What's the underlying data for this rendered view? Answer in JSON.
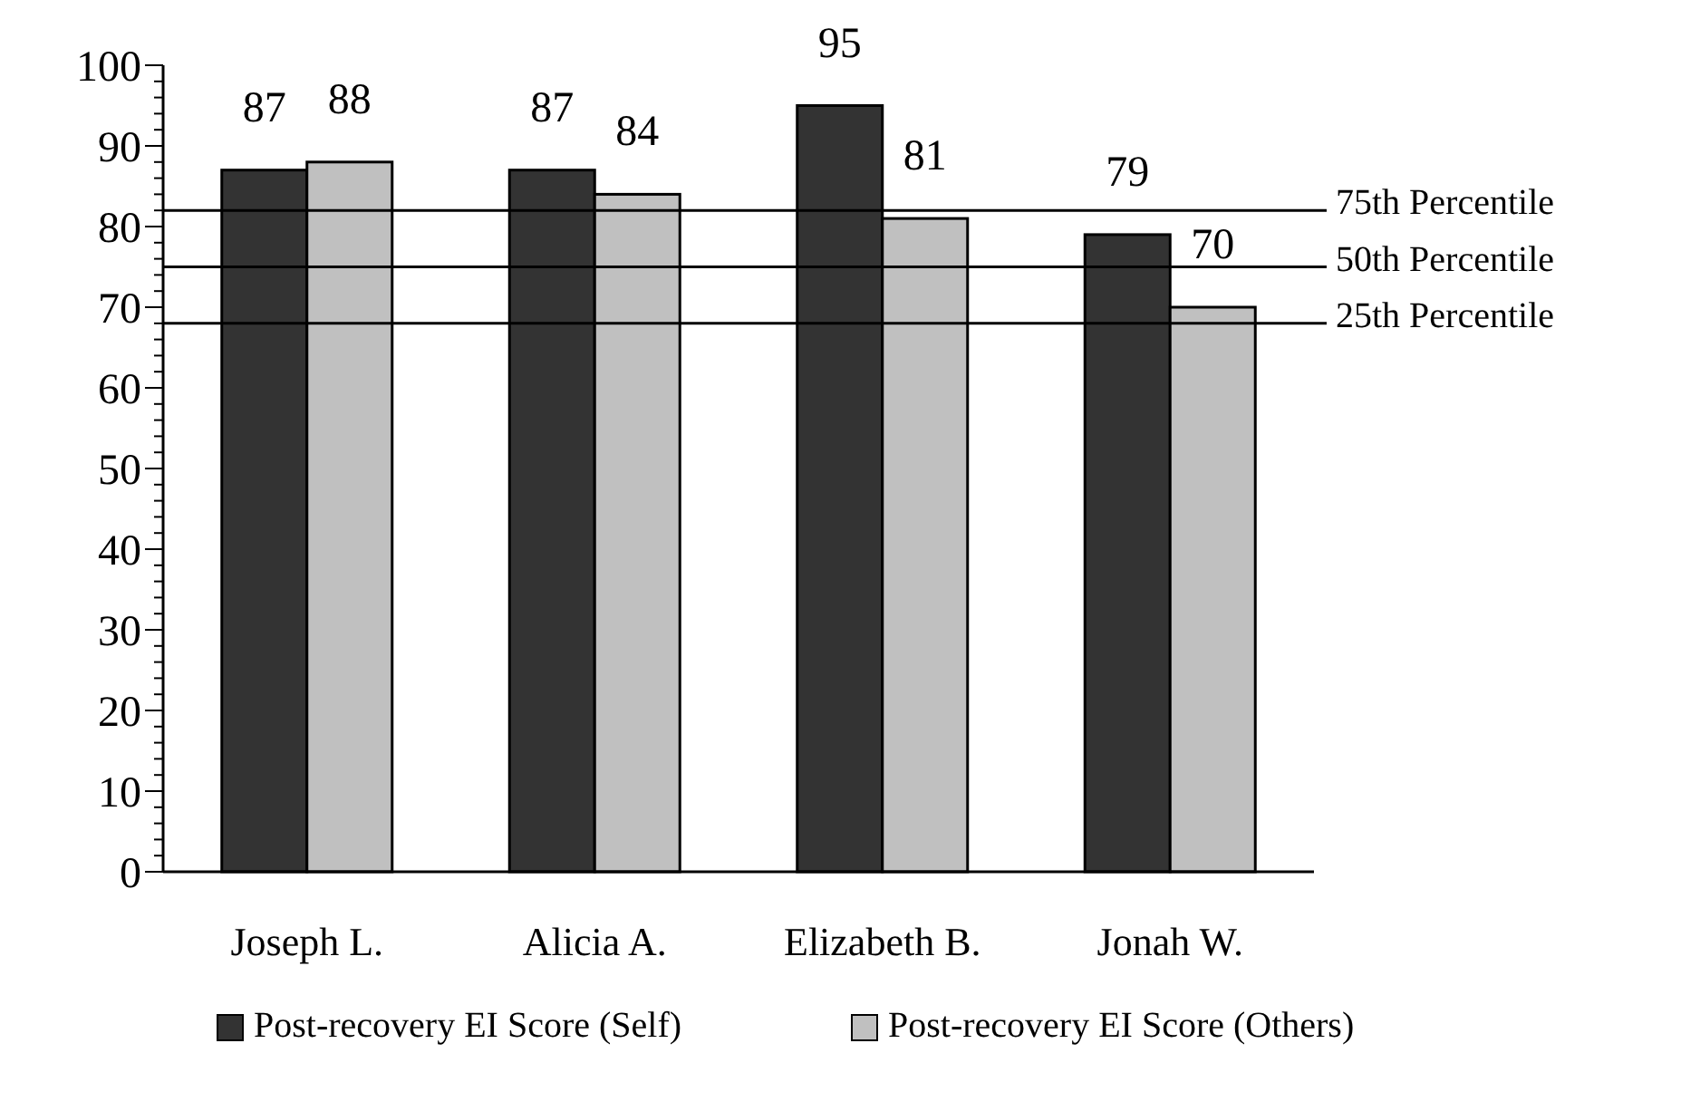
{
  "chart_data": {
    "type": "bar",
    "categories": [
      "Joseph L.",
      "Alicia A.",
      "Elizabeth B.",
      "Jonah W."
    ],
    "series": [
      {
        "name": "Post-recovery EI Score (Self)",
        "color": "#333333",
        "values": [
          87,
          87,
          95,
          79
        ]
      },
      {
        "name": "Post-recovery EI Score (Others)",
        "color": "#c0c0c0",
        "values": [
          88,
          84,
          81,
          70
        ]
      }
    ],
    "ylim": [
      0,
      100
    ],
    "yticks": [
      0,
      {
        "value": 2,
        "label": null
      },
      {
        "value": 4,
        "label": null
      },
      {
        "value": 6,
        "label": null
      },
      {
        "value": 8,
        "label": null
      },
      10,
      {
        "value": 12,
        "label": null
      },
      {
        "value": 14,
        "label": null
      },
      {
        "value": 16,
        "label": null
      },
      {
        "value": 18,
        "label": null
      },
      20,
      {
        "value": 22,
        "label": null
      },
      {
        "value": 24,
        "label": null
      },
      {
        "value": 26,
        "label": null
      },
      {
        "value": 28,
        "label": null
      },
      30,
      {
        "value": 32,
        "label": null
      },
      {
        "value": 34,
        "label": null
      },
      {
        "value": 36,
        "label": null
      },
      {
        "value": 38,
        "label": null
      },
      40,
      {
        "value": 42,
        "label": null
      },
      {
        "value": 44,
        "label": null
      },
      {
        "value": 46,
        "label": null
      },
      {
        "value": 48,
        "label": null
      },
      50,
      {
        "value": 52,
        "label": null
      },
      {
        "value": 54,
        "label": null
      },
      {
        "value": 56,
        "label": null
      },
      {
        "value": 58,
        "label": null
      },
      60,
      {
        "value": 62,
        "label": null
      },
      {
        "value": 64,
        "label": null
      },
      {
        "value": 66,
        "label": null
      },
      {
        "value": 68,
        "label": null
      },
      70,
      {
        "value": 72,
        "label": null
      },
      {
        "value": 74,
        "label": null
      },
      {
        "value": 76,
        "label": null
      },
      {
        "value": 78,
        "label": null
      },
      80,
      {
        "value": 82,
        "label": null
      },
      {
        "value": 84,
        "label": null
      },
      {
        "value": 86,
        "label": null
      },
      {
        "value": 88,
        "label": null
      },
      90,
      {
        "value": 92,
        "label": null
      },
      {
        "value": 94,
        "label": null
      },
      {
        "value": 96,
        "label": null
      },
      {
        "value": 98,
        "label": null
      },
      100
    ],
    "ref_lines": [
      {
        "axis": "y",
        "value": 82,
        "label": "75th Percentile",
        "color": "#000000"
      },
      {
        "axis": "y",
        "value": 75,
        "label": "50th Percentile",
        "color": "#000000"
      },
      {
        "axis": "y",
        "value": 68,
        "label": "25th Percentile",
        "color": "#000000"
      }
    ],
    "data_labels": true,
    "grid": false,
    "legend": "bottom"
  }
}
